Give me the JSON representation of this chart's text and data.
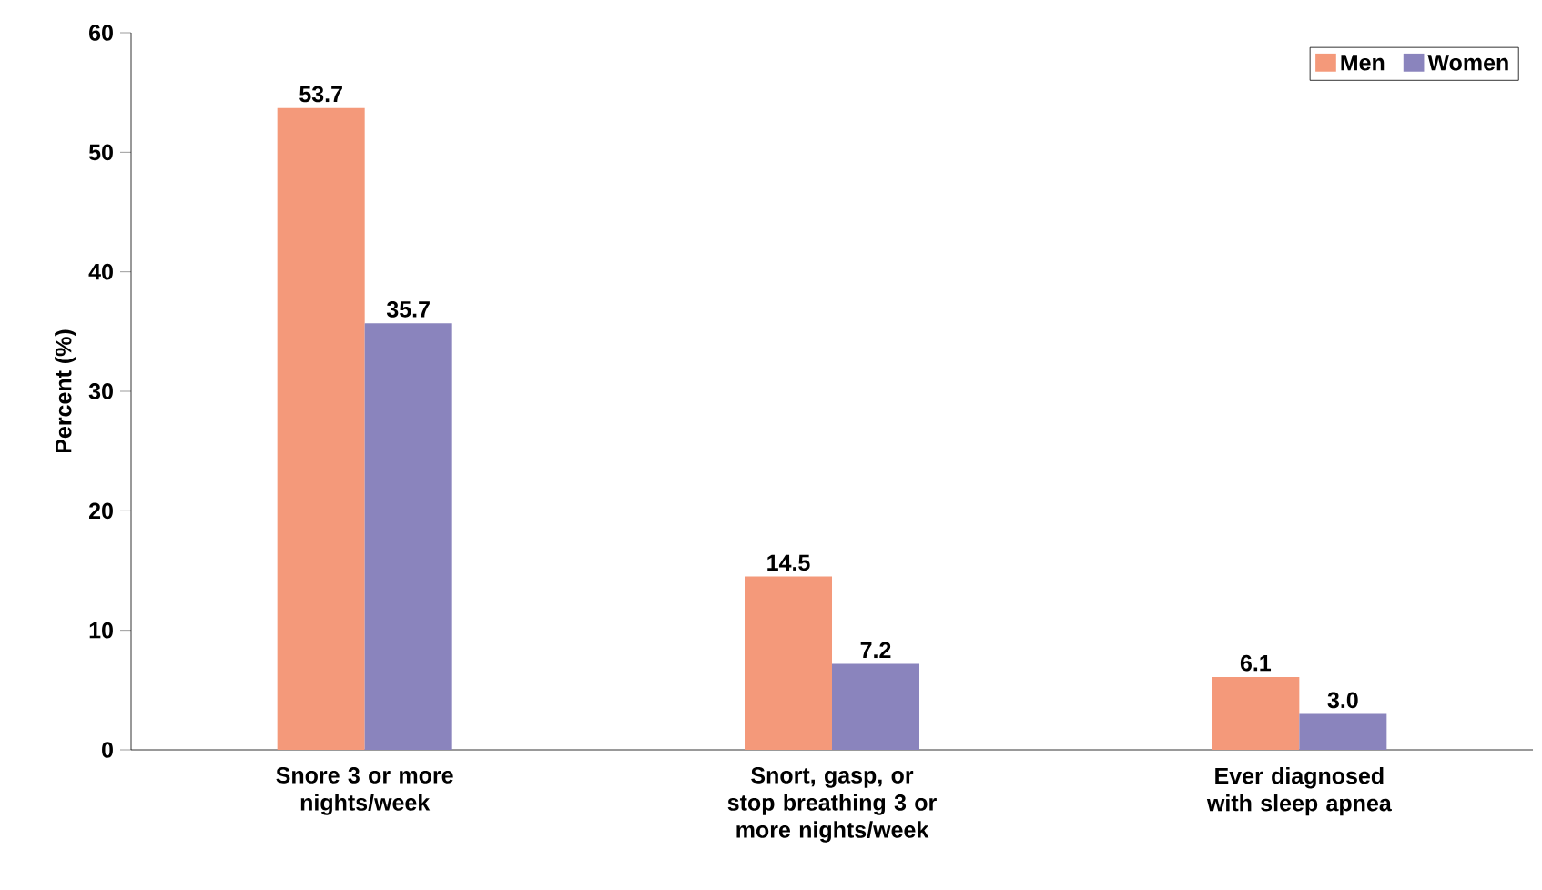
{
  "chart_data": {
    "type": "bar",
    "ylabel": "Percent (%)",
    "categories": [
      "Snore 3 or more nights/week",
      "Snort, gasp, or stop breathing 3 or more nights/week",
      "Ever diagnosed with sleep apnea"
    ],
    "series": [
      {
        "name": "Men",
        "color": "#f4997a",
        "values": [
          53.7,
          14.5,
          6.1
        ],
        "value_labels": [
          "53.7",
          "14.5",
          "6.1"
        ]
      },
      {
        "name": "Women",
        "color": "#8a84bd",
        "values": [
          35.7,
          7.2,
          3.0
        ],
        "value_labels": [
          "35.7",
          "7.2",
          "3.0"
        ]
      }
    ],
    "ylim": [
      0,
      60
    ],
    "yticks": [
      0,
      10,
      20,
      30,
      40,
      50,
      60
    ],
    "legend": "top right",
    "grid": false
  }
}
